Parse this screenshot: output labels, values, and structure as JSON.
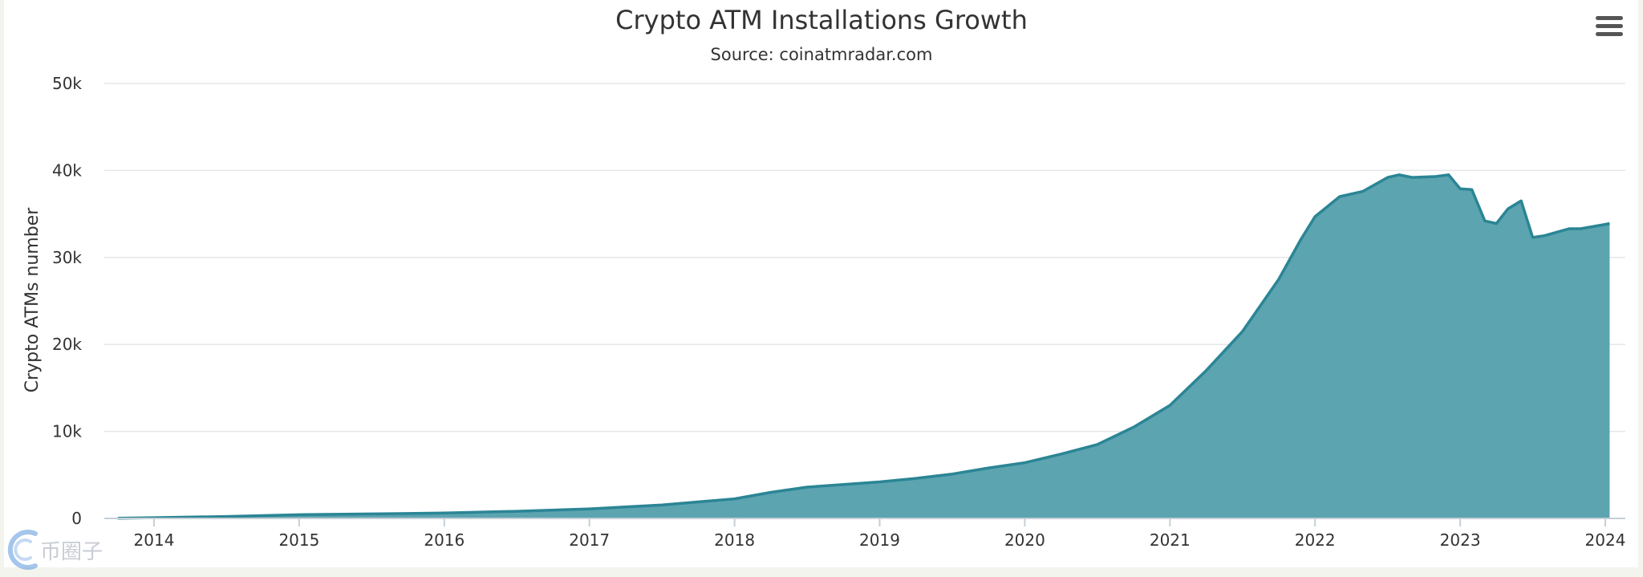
{
  "chart_data": {
    "type": "area",
    "title": "Crypto ATM Installations Growth",
    "subtitle": "Source: coinatmradar.com",
    "ylabel": "Crypto ATMs number",
    "xlabel": "",
    "ylim": [
      0,
      50000
    ],
    "yticks": [
      0,
      10000,
      20000,
      30000,
      40000,
      50000
    ],
    "ytick_labels": [
      "0",
      "10k",
      "20k",
      "30k",
      "40k",
      "50k"
    ],
    "xticks": [
      2014,
      2015,
      2016,
      2017,
      2018,
      2019,
      2020,
      2021,
      2022,
      2023,
      2024
    ],
    "xtick_labels": [
      "2014",
      "2015",
      "2016",
      "2017",
      "2018",
      "2019",
      "2020",
      "2021",
      "2022",
      "2023",
      "2024"
    ],
    "grid": true,
    "legend": "none",
    "colors": {
      "fill": "#5ba4b0",
      "line": "#2b8595",
      "grid": "#e6e6e6"
    },
    "series": [
      {
        "values": [
          [
            2013.75,
            30
          ],
          [
            2014.0,
            80
          ],
          [
            2014.5,
            220
          ],
          [
            2015.0,
            420
          ],
          [
            2015.5,
            520
          ],
          [
            2016.0,
            620
          ],
          [
            2016.5,
            820
          ],
          [
            2017.0,
            1100
          ],
          [
            2017.5,
            1550
          ],
          [
            2018.0,
            2250
          ],
          [
            2018.25,
            3000
          ],
          [
            2018.5,
            3600
          ],
          [
            2018.75,
            3900
          ],
          [
            2019.0,
            4200
          ],
          [
            2019.25,
            4600
          ],
          [
            2019.5,
            5100
          ],
          [
            2019.75,
            5800
          ],
          [
            2020.0,
            6400
          ],
          [
            2020.25,
            7400
          ],
          [
            2020.5,
            8500
          ],
          [
            2020.75,
            10500
          ],
          [
            2021.0,
            13000
          ],
          [
            2021.25,
            17000
          ],
          [
            2021.5,
            21500
          ],
          [
            2021.75,
            27500
          ],
          [
            2021.9,
            32000
          ],
          [
            2022.0,
            34700
          ],
          [
            2022.17,
            37000
          ],
          [
            2022.33,
            37600
          ],
          [
            2022.5,
            39200
          ],
          [
            2022.58,
            39500
          ],
          [
            2022.67,
            39200
          ],
          [
            2022.83,
            39300
          ],
          [
            2022.92,
            39500
          ],
          [
            2023.0,
            37900
          ],
          [
            2023.08,
            37800
          ],
          [
            2023.17,
            34200
          ],
          [
            2023.25,
            33900
          ],
          [
            2023.33,
            35600
          ],
          [
            2023.42,
            36500
          ],
          [
            2023.5,
            32300
          ],
          [
            2023.58,
            32500
          ],
          [
            2023.75,
            33300
          ],
          [
            2023.83,
            33300
          ],
          [
            2024.0,
            33800
          ],
          [
            2024.03,
            33900
          ]
        ]
      }
    ]
  },
  "toolbar": {
    "menu_icon": "hamburger-menu-icon"
  },
  "watermark": {
    "text": "币圈子"
  }
}
